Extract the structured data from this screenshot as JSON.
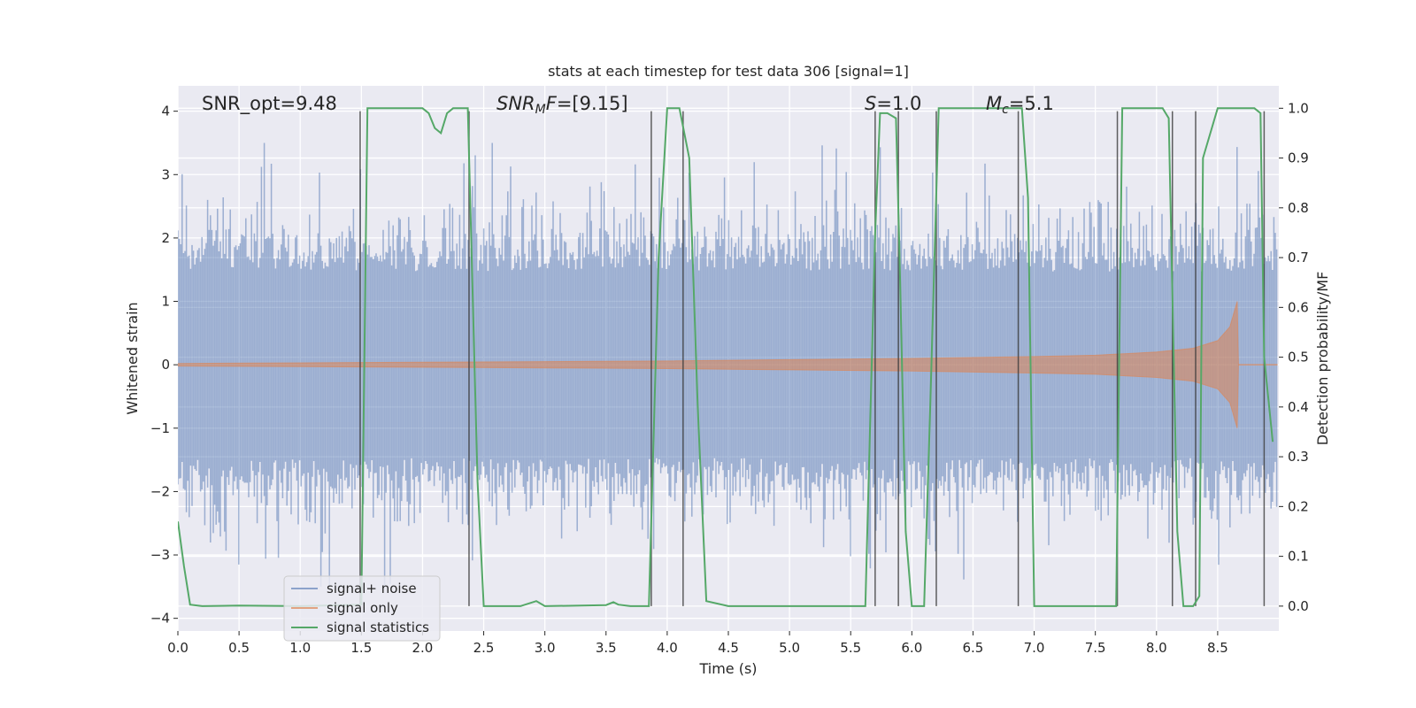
{
  "chart_data": {
    "type": "line",
    "title": "stats at each timestep for test data 306 [signal=1]",
    "xlabel": "Time (s)",
    "ylabel": "Whitened strain",
    "y2label": "Detection probability/MF",
    "xlim": [
      0,
      9.0
    ],
    "ylim": [
      -4.2,
      4.4
    ],
    "y2lim": [
      -0.05,
      1.045
    ],
    "xticks": [
      0.0,
      0.5,
      1.0,
      1.5,
      2.0,
      2.5,
      3.0,
      3.5,
      4.0,
      4.5,
      5.0,
      5.5,
      6.0,
      6.5,
      7.0,
      7.5,
      8.0,
      8.5
    ],
    "xtick_labels": [
      "0.0",
      "0.5",
      "1.0",
      "1.5",
      "2.0",
      "2.5",
      "3.0",
      "3.5",
      "4.0",
      "4.5",
      "5.0",
      "5.5",
      "6.0",
      "6.5",
      "7.0",
      "7.5",
      "8.0",
      "8.5"
    ],
    "yticks": [
      -4,
      -3,
      -2,
      -1,
      0,
      1,
      2,
      3,
      4
    ],
    "ytick_labels": [
      "−4",
      "−3",
      "−2",
      "−1",
      "0",
      "1",
      "2",
      "3",
      "4"
    ],
    "y2ticks": [
      0.0,
      0.1,
      0.2,
      0.3,
      0.4,
      0.5,
      0.6,
      0.7,
      0.8,
      0.9,
      1.0
    ],
    "y2tick_labels": [
      "0.0",
      "0.1",
      "0.2",
      "0.3",
      "0.4",
      "0.5",
      "0.6",
      "0.7",
      "0.8",
      "0.9",
      "1.0"
    ],
    "grid": true,
    "legend_position": "lower-left",
    "annotations": [
      {
        "parts": [
          {
            "t": "SNR_opt=9.48",
            "i": false
          }
        ]
      },
      {
        "parts": [
          {
            "t": "SNR",
            "i": true
          },
          {
            "t": "M",
            "i": true,
            "sub": true
          },
          {
            "t": "F",
            "i": true
          },
          {
            "t": "=[9.15]",
            "i": false
          }
        ]
      },
      {
        "parts": [
          {
            "t": "S",
            "i": true
          },
          {
            "t": "=1.0",
            "i": false
          }
        ]
      },
      {
        "parts": [
          {
            "t": "M",
            "i": true
          },
          {
            "t": "c",
            "i": true,
            "sub": true
          },
          {
            "t": "=5.1",
            "i": false
          }
        ]
      }
    ],
    "series": [
      {
        "name": "signal+ noise",
        "color": "#4c72b0",
        "style": "noise",
        "x_range": [
          0,
          8.99
        ],
        "amplitude_typical": 1.6,
        "amplitude_max": 3.5
      },
      {
        "name": "signal only",
        "color": "#dd8452",
        "style": "chirp",
        "envelope": {
          "x": [
            0,
            1.0,
            2.0,
            3.0,
            4.0,
            5.0,
            6.0,
            7.0,
            7.5,
            8.0,
            8.3,
            8.5,
            8.6,
            8.66,
            8.67
          ],
          "y": [
            0.02,
            0.03,
            0.04,
            0.05,
            0.06,
            0.08,
            0.1,
            0.13,
            0.15,
            0.2,
            0.26,
            0.38,
            0.6,
            1.0,
            0.0
          ]
        }
      },
      {
        "name": "signal statistics",
        "color": "#55a868",
        "style": "line",
        "x": [
          0.0,
          0.05,
          0.1,
          0.2,
          0.5,
          1.0,
          1.5,
          1.55,
          1.6,
          1.8,
          2.0,
          2.05,
          2.1,
          2.15,
          2.2,
          2.25,
          2.3,
          2.37,
          2.45,
          2.5,
          2.8,
          2.93,
          3.0,
          3.5,
          3.56,
          3.6,
          3.7,
          3.85,
          3.93,
          4.0,
          4.1,
          4.18,
          4.25,
          4.32,
          4.5,
          5.0,
          5.5,
          5.62,
          5.7,
          5.74,
          5.8,
          5.87,
          5.9,
          5.95,
          6.0,
          6.1,
          6.15,
          6.22,
          6.3,
          6.6,
          6.85,
          6.9,
          6.95,
          7.0,
          7.5,
          7.67,
          7.72,
          7.8,
          8.05,
          8.1,
          8.17,
          8.22,
          8.3,
          8.35,
          8.38,
          8.5,
          8.8,
          8.85,
          8.88,
          8.95
        ],
        "y": [
          0.17,
          0.08,
          0.003,
          0.0,
          0.001,
          0.0,
          0.003,
          1.0,
          1.0,
          1.0,
          1.0,
          0.99,
          0.96,
          0.95,
          0.99,
          1.0,
          1.0,
          1.0,
          0.25,
          0.0,
          0.0,
          0.01,
          0.0,
          0.002,
          0.008,
          0.003,
          0.0,
          0.0,
          0.7,
          1.0,
          1.0,
          0.9,
          0.4,
          0.01,
          0.0,
          0.0,
          0.0,
          0.0,
          0.75,
          0.99,
          0.99,
          0.98,
          0.7,
          0.15,
          0.0,
          0.0,
          0.4,
          1.0,
          1.0,
          1.0,
          1.0,
          1.0,
          0.82,
          0.0,
          0.0,
          0.0,
          1.0,
          1.0,
          1.0,
          0.98,
          0.15,
          0.0,
          0.0,
          0.02,
          0.9,
          1.0,
          1.0,
          0.99,
          0.5,
          0.33
        ]
      }
    ],
    "vertical_lines": [
      {
        "x": 1.49,
        "top": 4.0
      },
      {
        "x": 2.38,
        "top": 4.0
      },
      {
        "x": 3.87,
        "top": 4.0
      },
      {
        "x": 4.13,
        "top": 4.0
      },
      {
        "x": 5.7,
        "top": 4.0
      },
      {
        "x": 5.89,
        "top": 4.0
      },
      {
        "x": 6.2,
        "top": 4.0
      },
      {
        "x": 6.87,
        "top": 4.0
      },
      {
        "x": 7.68,
        "top": 4.0
      },
      {
        "x": 8.13,
        "top": 4.0
      },
      {
        "x": 8.32,
        "top": 4.0
      },
      {
        "x": 8.88,
        "top": 4.0
      }
    ]
  }
}
